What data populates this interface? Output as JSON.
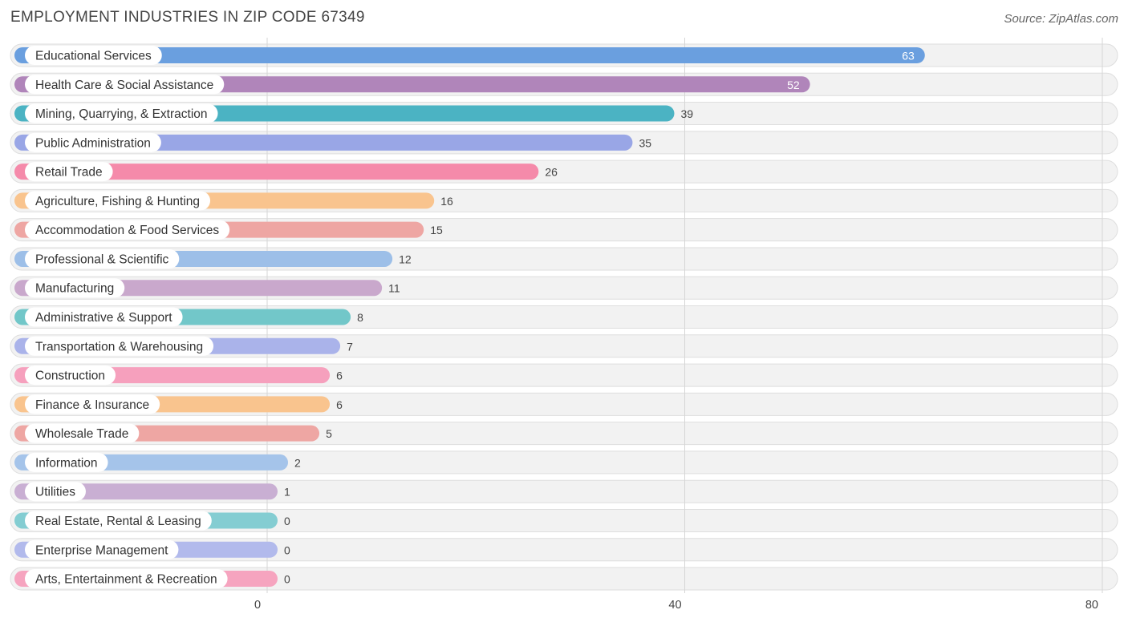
{
  "header": {
    "title": "EMPLOYMENT INDUSTRIES IN ZIP CODE 67349",
    "source": "Source: ZipAtlas.com"
  },
  "chart_data": {
    "type": "bar",
    "orientation": "horizontal",
    "title": "EMPLOYMENT INDUSTRIES IN ZIP CODE 67349",
    "xlim": [
      0,
      80
    ],
    "xticks": [
      0,
      40,
      80
    ],
    "grid": true,
    "categories": [
      "Educational Services",
      "Health Care & Social Assistance",
      "Mining, Quarrying, & Extraction",
      "Public Administration",
      "Retail Trade",
      "Agriculture, Fishing & Hunting",
      "Accommodation & Food Services",
      "Professional & Scientific",
      "Manufacturing",
      "Administrative & Support",
      "Transportation & Warehousing",
      "Construction",
      "Finance & Insurance",
      "Wholesale Trade",
      "Information",
      "Utilities",
      "Real Estate, Rental & Leasing",
      "Enterprise Management",
      "Arts, Entertainment & Recreation"
    ],
    "values": [
      63,
      52,
      39,
      35,
      26,
      16,
      15,
      12,
      11,
      8,
      7,
      6,
      6,
      5,
      2,
      1,
      0,
      0,
      0
    ],
    "colors": [
      "#6a9fdf",
      "#b085ba",
      "#4bb3c3",
      "#99a6e6",
      "#f58aaa",
      "#f9c48e",
      "#eea6a3",
      "#9dbfe8",
      "#c9a8cc",
      "#72c7c9",
      "#aab3ea",
      "#f6a0bd",
      "#f9c48e",
      "#eea6a3",
      "#a5c4ea",
      "#c9afd3",
      "#84cdd2",
      "#b2baec",
      "#f6a4bf"
    ]
  }
}
